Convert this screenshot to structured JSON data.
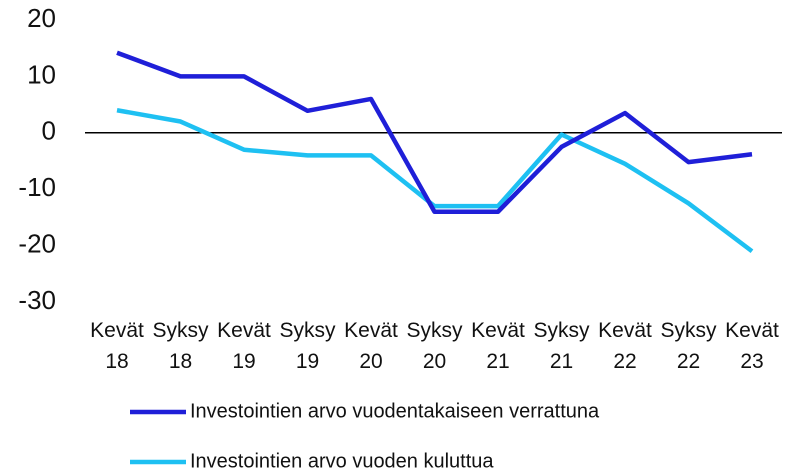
{
  "chart_data": {
    "type": "line",
    "categories": [
      "Kevät 18",
      "Syksy 18",
      "Kevät 19",
      "Syksy 19",
      "Kevät 20",
      "Syksy 20",
      "Kevät 21",
      "Syksy 21",
      "Kevät 22",
      "Syksy 22",
      "Kevät 23"
    ],
    "series": [
      {
        "name": "Investointien arvo vuodentakaiseen verrattuna",
        "color": "#1f1fd8",
        "values": [
          14.2,
          10,
          10,
          3.9,
          6,
          -14,
          -14,
          -2.5,
          3.5,
          -5.2,
          -3.8
        ]
      },
      {
        "name": "Investointien arvo vuoden kuluttua",
        "color": "#1ec0f2",
        "values": [
          4,
          2,
          -3,
          -4,
          -4,
          -13,
          -13,
          -0.3,
          -5.5,
          -12.5,
          -21
        ]
      }
    ],
    "ylim": [
      -30,
      20
    ],
    "yticks": [
      -30,
      -20,
      -10,
      0,
      10,
      20
    ],
    "legend": "bottom"
  }
}
